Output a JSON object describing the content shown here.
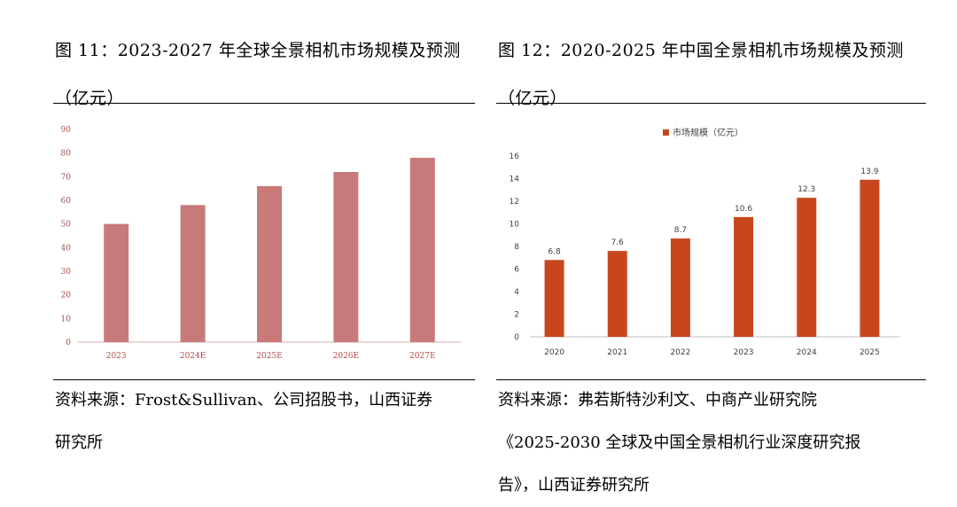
{
  "left": {
    "title_line1": "图 11：2023-2027 年全球全景相机市场规模及预测",
    "title_line2": "（亿元）",
    "source_line1": "资料来源：Frost&Sullivan、公司招股书，山西证券",
    "source_line2": "研究所"
  },
  "right": {
    "title_line1": "图 12：2020-2025 年中国全景相机市场规模及预测",
    "title_line2": "（亿元）",
    "source_line1": "资料来源：弗若斯特沙利文、中商产业研究院",
    "source_line2": "《2025-2030 全球及中国全景相机行业深度研究报",
    "source_line3": "告》，山西证券研究所"
  },
  "chart_data": [
    {
      "type": "bar",
      "categories": [
        "2023",
        "2024E",
        "2025E",
        "2026E",
        "2027E"
      ],
      "values": [
        50,
        58,
        66,
        72,
        78
      ],
      "ylim": [
        0,
        90
      ],
      "yticks": [
        0,
        10,
        20,
        30,
        40,
        50,
        60,
        70,
        80,
        90
      ],
      "grid": false,
      "color": "#c87a7a",
      "axis_text_color": "#b24a4a",
      "legend": "none"
    },
    {
      "type": "bar",
      "categories": [
        "2020",
        "2021",
        "2022",
        "2023",
        "2024",
        "2025"
      ],
      "series": [
        {
          "name": "市场规模（亿元）",
          "values": [
            6.8,
            7.6,
            8.7,
            10.6,
            12.3,
            13.9
          ]
        }
      ],
      "data_labels": [
        "6.8",
        "7.6",
        "8.7",
        "10.6",
        "12.3",
        "13.9"
      ],
      "ylim": [
        0,
        16
      ],
      "yticks": [
        0,
        2,
        4,
        6,
        8,
        10,
        12,
        14,
        16
      ],
      "grid": false,
      "color": "#c8461e",
      "legend": "top-center"
    }
  ]
}
